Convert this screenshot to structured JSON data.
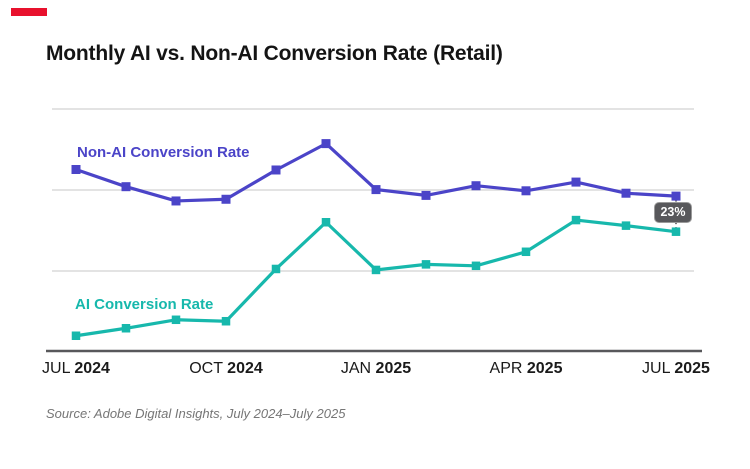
{
  "accent": {
    "color": "#E8112D"
  },
  "title": "Monthly AI vs. Non-AI Conversion Rate (Retail)",
  "source": "Source: Adobe Digital Insights, July 2024–July 2025",
  "colors": {
    "non_ai_line": "#4B44C8",
    "ai_line": "#17B8AC",
    "gridline": "#E3E3E3",
    "axis_line": "#58585B",
    "badge_bg": "#58585B",
    "badge_text": "#ffffff",
    "tick_text": "#1a1a1a"
  },
  "chart_data": {
    "type": "line",
    "title": "Monthly AI vs. Non-AI Conversion Rate (Retail)",
    "xlabel": "",
    "ylabel": "",
    "ylim": [
      0,
      100
    ],
    "y_scale_note": "no y-axis tick labels shown; values estimated on 0-100 relative scale (0 = x-axis line, 100 = top gridline)",
    "grid": "horizontal",
    "legend_position": "inline-labels-near-lines",
    "categories": [
      "Jul 2024",
      "Aug 2024",
      "Sep 2024",
      "Oct 2024",
      "Nov 2024",
      "Dec 2024",
      "Jan 2025",
      "Feb 2025",
      "Mar 2025",
      "Apr 2025",
      "May 2025",
      "Jun 2025",
      "Jul 2025"
    ],
    "series": [
      {
        "name": "Non-AI Conversion Rate",
        "color": "#4B44C8",
        "marker": "square",
        "values": [
          75.0,
          67.9,
          62.0,
          62.7,
          74.8,
          85.7,
          66.7,
          64.3,
          68.3,
          66.2,
          69.8,
          65.2,
          64.0
        ]
      },
      {
        "name": "AI Conversion Rate",
        "color": "#17B8AC",
        "marker": "square",
        "values": [
          6.3,
          9.4,
          12.9,
          12.3,
          33.9,
          53.2,
          33.5,
          35.8,
          35.2,
          41.0,
          54.1,
          51.8,
          49.3
        ]
      }
    ],
    "xticks": [
      {
        "month": "JUL",
        "year": "2024"
      },
      {
        "month": "OCT",
        "year": "2024"
      },
      {
        "month": "JAN",
        "year": "2025"
      },
      {
        "month": "APR",
        "year": "2025"
      },
      {
        "month": "JUL",
        "year": "2025"
      }
    ],
    "xtick_indices": [
      0,
      3,
      6,
      9,
      12
    ],
    "annotation": {
      "text": "23%",
      "at_category": "Jul 2025",
      "connects": [
        "Non-AI Conversion Rate",
        "AI Conversion Rate"
      ],
      "style": "dotted-vertical-connector-with-badge"
    }
  }
}
